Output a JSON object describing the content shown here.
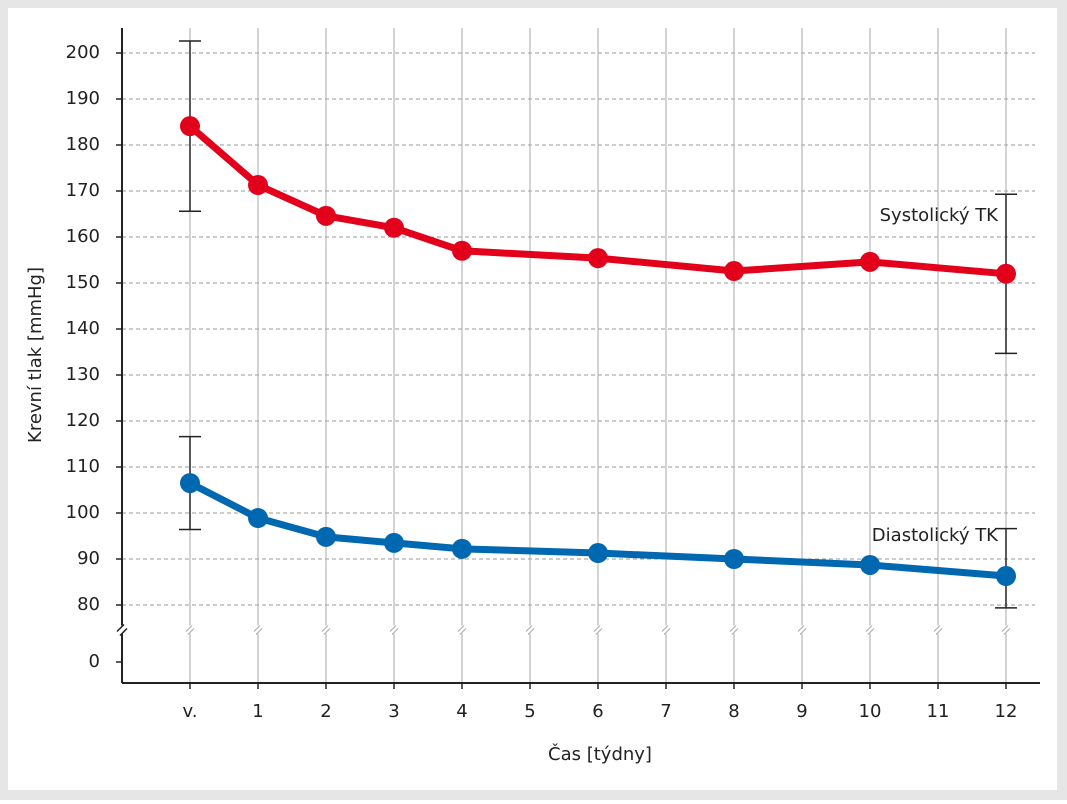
{
  "chart_data": {
    "type": "line",
    "x_label": "Čas [týdny]",
    "y_label": "Krevní tlak [mmHg]",
    "x": [
      0,
      1,
      2,
      3,
      4,
      6,
      8,
      10,
      12
    ],
    "xlim": [
      -1,
      12.5
    ],
    "xticks": [
      {
        "value": 0,
        "label": "v."
      },
      1,
      2,
      3,
      4,
      5,
      6,
      7,
      8,
      9,
      10,
      11,
      12
    ],
    "ylim": [
      0,
      200
    ],
    "yticks": [
      0,
      80,
      90,
      100,
      110,
      120,
      130,
      140,
      150,
      160,
      170,
      180,
      190,
      200
    ],
    "axis_break": true,
    "grid": true,
    "series": [
      {
        "name": "Systolický TK",
        "color": "#e3001b",
        "values": [
          184.1,
          171.3,
          164.6,
          162,
          157,
          155.4,
          152.6,
          154.6,
          152
        ],
        "errors": [
          18.5,
          null,
          null,
          null,
          null,
          null,
          null,
          null,
          17.3
        ]
      },
      {
        "name": "Diastolický TK",
        "color": "#0067b1",
        "values": [
          106.5,
          98.9,
          94.8,
          93.5,
          92.2,
          91.3,
          90,
          88.7,
          86.3
        ],
        "errors": [
          10.1,
          null,
          null,
          null,
          null,
          null,
          null,
          null,
          10.3
        ]
      }
    ]
  }
}
